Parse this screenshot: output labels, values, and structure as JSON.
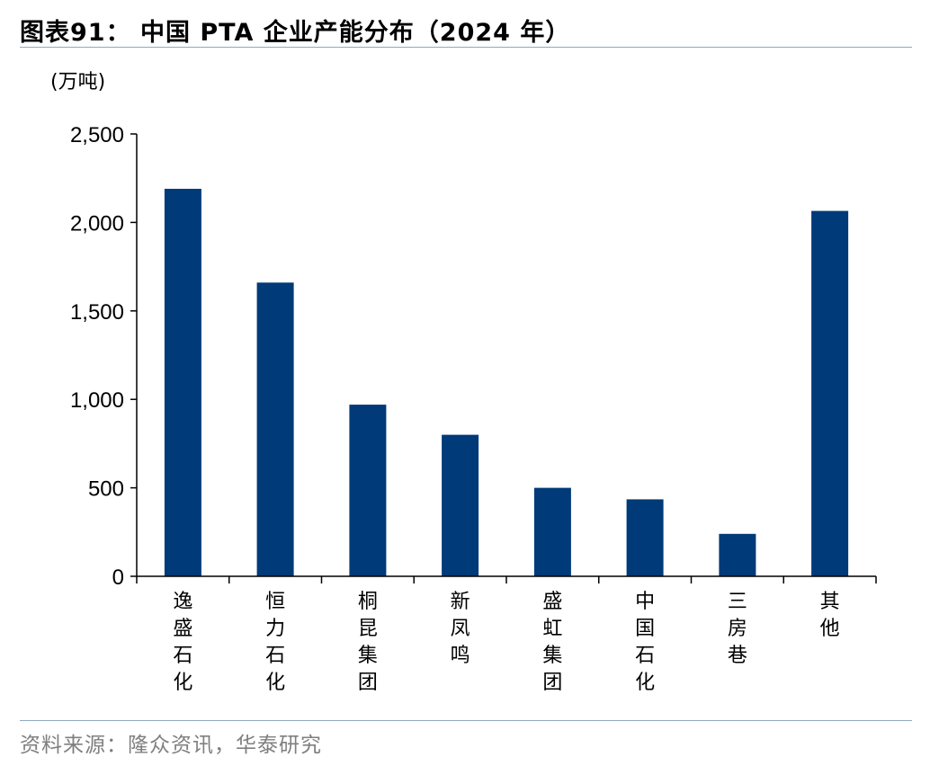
{
  "figure": {
    "title": "图表91： 中国 PTA 企业产能分布（2024 年）",
    "unit": "(万吨)",
    "source": "资料来源：隆众资讯，华泰研究"
  },
  "chart_data": {
    "type": "bar",
    "categories": [
      "逸盛石化",
      "恒力石化",
      "桐昆集团",
      "新凤鸣",
      "盛虹集团",
      "中国石化",
      "三房巷",
      "其他"
    ],
    "values": [
      2190,
      1660,
      970,
      800,
      500,
      435,
      240,
      2065
    ],
    "title": "",
    "xlabel": "",
    "ylabel": "(万吨)",
    "ylim": [
      0,
      2500
    ],
    "yticks": [
      0,
      500,
      1000,
      1500,
      2000,
      2500
    ],
    "ytick_labels": [
      "0",
      "500",
      "1,000",
      "1,500",
      "2,000",
      "2,500"
    ],
    "grid": false,
    "legend": "none",
    "bar_color": "#003a78"
  }
}
